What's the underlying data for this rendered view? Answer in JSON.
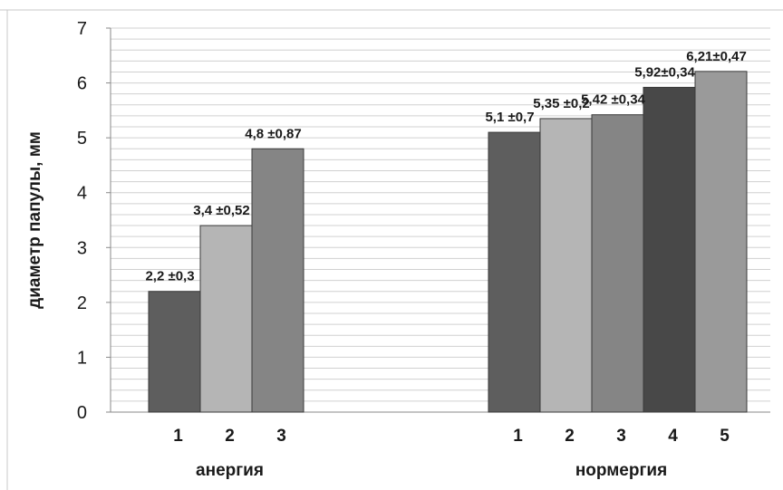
{
  "chart_data": {
    "type": "bar",
    "ylabel": "диаметр папулы, мм",
    "ylim": [
      0,
      7
    ],
    "yticks": [
      "0",
      "1",
      "2",
      "3",
      "4",
      "5",
      "6",
      "7"
    ],
    "grid": "horizontal",
    "groups": [
      {
        "name": "анергия",
        "categories": [
          "1",
          "2",
          "3"
        ],
        "values": [
          2.2,
          3.4,
          4.8
        ],
        "labels": [
          "2,2 ±0,3",
          "3,4 ±0,52",
          "4,8 ±0,87"
        ],
        "colors": [
          "#5e5e5e",
          "#b5b5b5",
          "#858585"
        ]
      },
      {
        "name": "нормергия",
        "categories": [
          "1",
          "2",
          "3",
          "4",
          "5"
        ],
        "values": [
          5.1,
          5.35,
          5.42,
          5.92,
          6.21
        ],
        "labels": [
          "5,1 ±0,7",
          "5,35 ±0,2",
          "5,42 ±0,34",
          "5,92±0,34",
          "6,21±0,47"
        ],
        "colors": [
          "#5e5e5e",
          "#b5b5b5",
          "#858585",
          "#484848",
          "#9a9a9a"
        ]
      }
    ]
  }
}
